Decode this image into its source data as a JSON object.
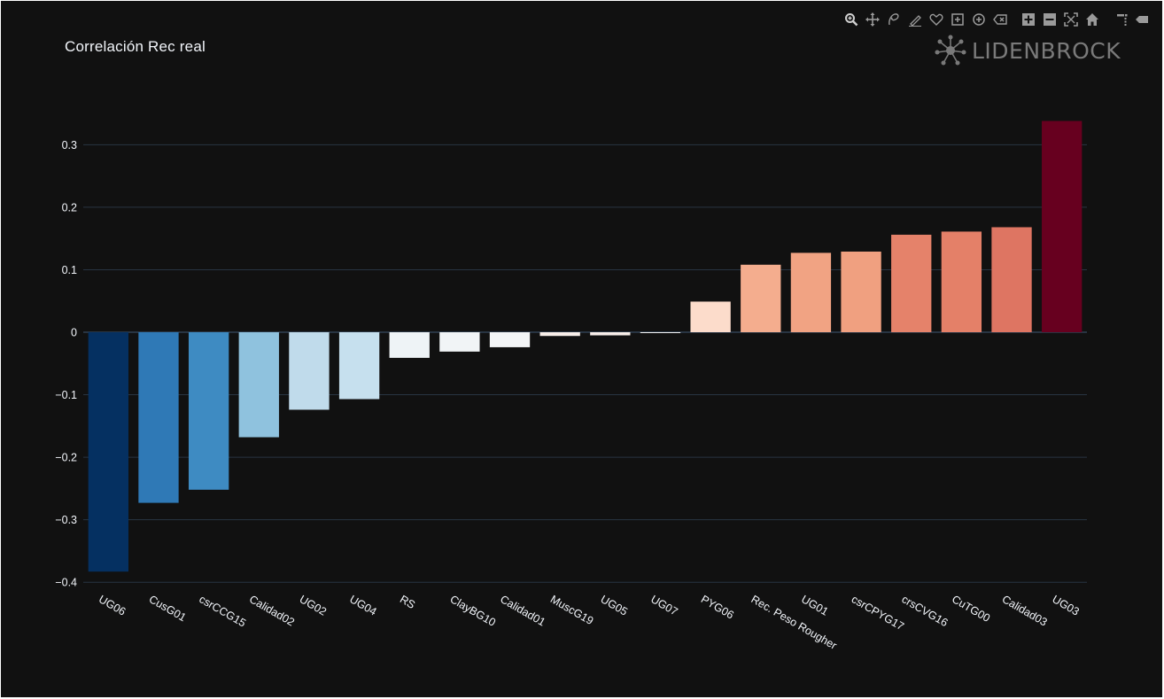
{
  "chart_data": {
    "type": "bar",
    "title": "Correlación Rec real",
    "categories": [
      "UG06",
      "CusG01",
      "csrCCG15",
      "Calidad02",
      "UG02",
      "UG04",
      "RS",
      "ClayBG10",
      "Calidad01",
      "MuscG19",
      "UG05",
      "UG07",
      "PYG06",
      "Rec. Peso Rougher",
      "UG01",
      "csrCPYG17",
      "crsCVG16",
      "CuTG00",
      "Calidad03",
      "UG03"
    ],
    "values": [
      -0.383,
      -0.273,
      -0.252,
      -0.168,
      -0.124,
      -0.107,
      -0.041,
      -0.031,
      -0.024,
      -0.006,
      -0.005,
      -0.001,
      0.049,
      0.108,
      0.127,
      0.129,
      0.156,
      0.161,
      0.168,
      0.338
    ],
    "colors": [
      "#053061",
      "#2f79b6",
      "#3e8bc2",
      "#8fc2de",
      "#c0dbeb",
      "#c6e0ee",
      "#eef3f6",
      "#f1f4f6",
      "#f3f5f6",
      "#f8efea",
      "#f8efea",
      "#f5f5f5",
      "#fcdccb",
      "#f4ad8e",
      "#f1a383",
      "#f0a080",
      "#e5826a",
      "#e48068",
      "#de7562",
      "#67001f"
    ],
    "yticks": [
      0.3,
      0.2,
      0.1,
      0,
      -0.1,
      -0.2,
      -0.3,
      -0.4
    ],
    "ytick_labels": [
      "0.3",
      "0.2",
      "0.1",
      "0",
      "−0.1",
      "−0.2",
      "−0.3",
      "−0.4"
    ],
    "ylim": [
      -0.41,
      0.345
    ],
    "grid": true,
    "xlabel": "",
    "ylabel": ""
  },
  "brand": {
    "name": "LIDENBROCK"
  },
  "modebar": {
    "buttons": [
      "zoom-icon",
      "pan-icon",
      "lasso-select-icon",
      "draw-path-icon",
      "draw-closed-path-icon",
      "draw-rect-icon",
      "draw-circle-icon",
      "erase-shape-icon",
      "zoom-in-icon",
      "zoom-out-icon",
      "autoscale-icon",
      "reset-axes-icon",
      "spike-lines-icon",
      "hover-compare-icon"
    ]
  },
  "colors": {
    "background": "#111111",
    "grid": "#283442",
    "text": "#f2f5fa",
    "zeroline": "#283442"
  }
}
